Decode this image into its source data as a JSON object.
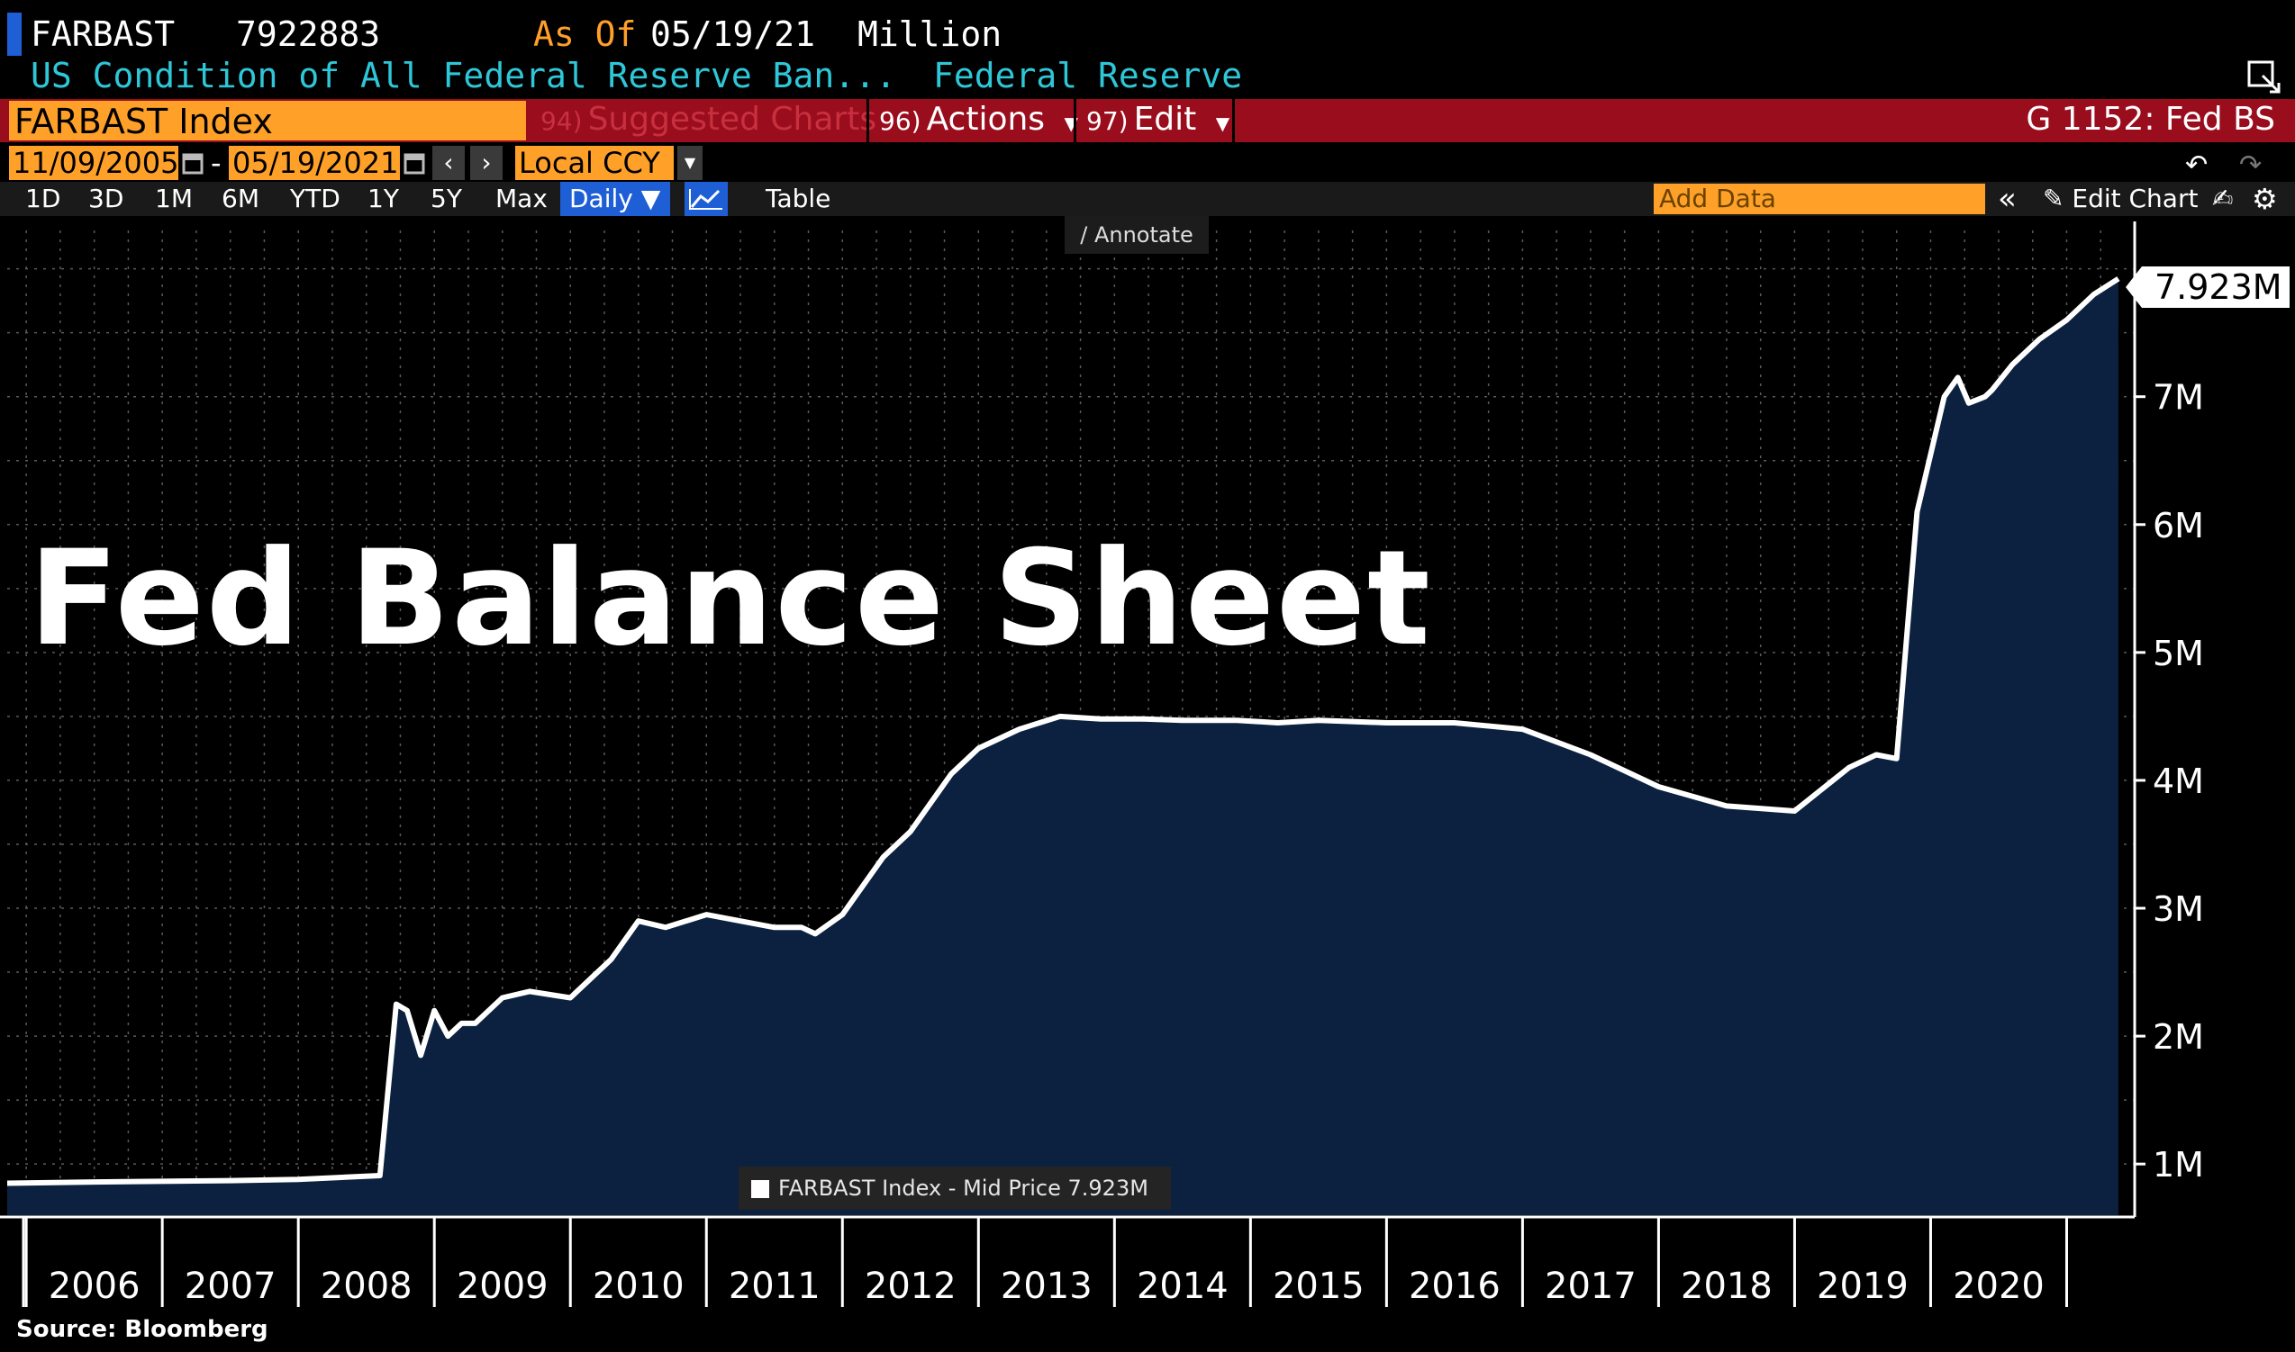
{
  "header": {
    "ticker": "FARBAST",
    "last_value": "7922883",
    "as_of_label": "As Of",
    "as_of_date": "05/19/21",
    "unit": "Million",
    "description": "US Condition of All Federal Reserve Ban...",
    "source_name": "Federal Reserve"
  },
  "toolbar": {
    "security": "FARBAST Index",
    "suggested_num": "94)",
    "suggested_label": "Suggested Charts",
    "actions_num": "96)",
    "actions_label": "Actions",
    "edit_num": "97)",
    "edit_label": "Edit",
    "chart_id": "G 1152: Fed BS"
  },
  "dates": {
    "start": "11/09/2005",
    "end": "05/19/2021",
    "dash": "-",
    "currency": "Local CCY"
  },
  "ranges": {
    "items": [
      "1D",
      "3D",
      "1M",
      "6M",
      "YTD",
      "1Y",
      "5Y",
      "Max"
    ],
    "frequency": "Daily",
    "table_label": "Table",
    "add_data_placeholder": "Add Data",
    "edit_chart_label": "Edit Chart"
  },
  "overlay": {
    "big_title": "Fed Balance Sheet",
    "annotate_label": "Annotate",
    "legend_text": "FARBAST Index - Mid Price 7.923M",
    "last_value_tag": "7.923M",
    "source": "Source: Bloomberg"
  },
  "colors": {
    "accent_orange": "#ffa028",
    "header_cyan": "#2ec7d8",
    "toolbar_red": "#9a0d1d",
    "active_blue": "#1f5fd6",
    "area_fill": "#0c2140",
    "line": "#ffffff"
  },
  "chart_data": {
    "type": "area",
    "title": "Fed Balance Sheet",
    "series": [
      {
        "name": "FARBAST Index - Mid Price",
        "x": [
          2005.86,
          2006.5,
          2007.5,
          2008.0,
          2008.6,
          2008.72,
          2008.8,
          2008.9,
          2009.0,
          2009.1,
          2009.2,
          2009.3,
          2009.5,
          2009.7,
          2010.0,
          2010.3,
          2010.5,
          2010.7,
          2011.0,
          2011.5,
          2011.7,
          2011.8,
          2012.0,
          2012.3,
          2012.5,
          2012.8,
          2013.0,
          2013.3,
          2013.6,
          2013.9,
          2014.2,
          2014.5,
          2014.9,
          2015.2,
          2015.5,
          2016.0,
          2016.5,
          2017.0,
          2017.5,
          2018.0,
          2018.5,
          2019.0,
          2019.4,
          2019.6,
          2019.75,
          2019.9,
          2020.1,
          2020.2,
          2020.28,
          2020.4,
          2020.45,
          2020.6,
          2020.8,
          2021.0,
          2021.2,
          2021.38
        ],
        "y": [
          0.85,
          0.86,
          0.87,
          0.88,
          0.91,
          2.25,
          2.2,
          1.85,
          2.2,
          2.0,
          2.1,
          2.1,
          2.3,
          2.35,
          2.3,
          2.6,
          2.9,
          2.85,
          2.95,
          2.85,
          2.85,
          2.8,
          2.95,
          3.4,
          3.6,
          4.05,
          4.25,
          4.4,
          4.5,
          4.48,
          4.48,
          4.47,
          4.47,
          4.45,
          4.47,
          4.45,
          4.45,
          4.4,
          4.2,
          3.95,
          3.8,
          3.76,
          4.1,
          4.2,
          4.17,
          6.1,
          7.0,
          7.15,
          6.95,
          7.0,
          7.05,
          7.25,
          7.45,
          7.6,
          7.8,
          7.923
        ]
      }
    ],
    "xlim": [
      2005.86,
      2021.5
    ],
    "ylim": [
      0.6,
      8.3
    ],
    "x_tick_labels": [
      "2006",
      "2007",
      "2008",
      "2009",
      "2010",
      "2011",
      "2012",
      "2013",
      "2014",
      "2015",
      "2016",
      "2017",
      "2018",
      "2019",
      "2020"
    ],
    "y_tick_labels": [
      "1M",
      "2M",
      "3M",
      "4M",
      "5M",
      "6M",
      "7M"
    ],
    "y_ticks": [
      1,
      2,
      3,
      4,
      5,
      6,
      7
    ],
    "last_label": "7.923M",
    "grid": true,
    "legend": "bottom-center"
  }
}
